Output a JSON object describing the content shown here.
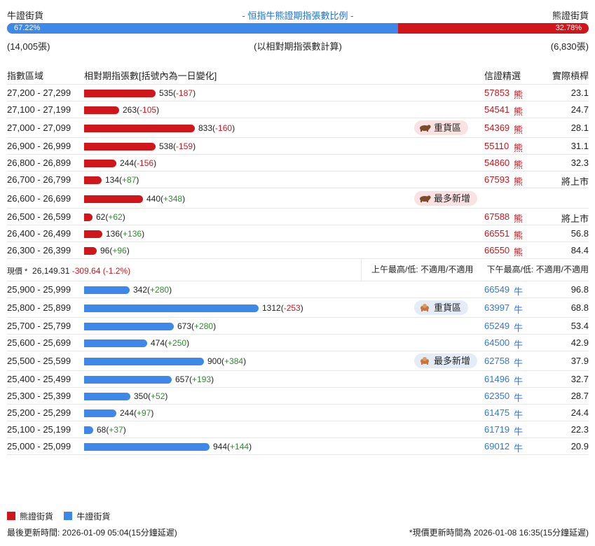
{
  "header": {
    "bull_label": "牛證街貨",
    "title": "- 恒指牛熊證期指張數比例 -",
    "bear_label": "熊證街貨"
  },
  "ratio": {
    "bull_pct": "67.22%",
    "bear_pct": "32.78%",
    "bull_fraction": 0.6722,
    "bull_color": "#3d88e8",
    "bear_color": "#d0151b"
  },
  "counts": {
    "bull": "(14,005張)",
    "note": "(以相對期指張數計算)",
    "bear": "(6,830張)"
  },
  "table_headers": {
    "range": "指數區域",
    "count": "相對期指張數[括號內為一日變化]",
    "issuer": "信證精選",
    "gearing": "實際槓桿"
  },
  "bear_rows": [
    {
      "range": "27,200 - 27,299",
      "value": 535,
      "count": "535",
      "change": "-187",
      "code": "57853",
      "type": "熊",
      "gearing": "23.1",
      "badge": ""
    },
    {
      "range": "27,100 - 27,199",
      "value": 263,
      "count": "263",
      "change": "-105",
      "code": "54541",
      "type": "熊",
      "gearing": "24.7",
      "badge": ""
    },
    {
      "range": "27,000 - 27,099",
      "value": 833,
      "count": "833",
      "change": "-160",
      "code": "54369",
      "type": "熊",
      "gearing": "28.1",
      "badge": "重貨區"
    },
    {
      "range": "26,900 - 26,999",
      "value": 538,
      "count": "538",
      "change": "-159",
      "code": "55110",
      "type": "熊",
      "gearing": "31.1",
      "badge": ""
    },
    {
      "range": "26,800 - 26,899",
      "value": 244,
      "count": "244",
      "change": "-156",
      "code": "54860",
      "type": "熊",
      "gearing": "32.3",
      "badge": ""
    },
    {
      "range": "26,700 - 26,799",
      "value": 134,
      "count": "134",
      "change": "+87",
      "code": "67593",
      "type": "熊",
      "gearing": "將上市",
      "badge": ""
    },
    {
      "range": "26,600 - 26,699",
      "value": 440,
      "count": "440",
      "change": "+348",
      "code": "",
      "type": "",
      "gearing": "",
      "badge": "最多新增"
    },
    {
      "range": "26,500 - 26,599",
      "value": 62,
      "count": "62",
      "change": "+62",
      "code": "67588",
      "type": "熊",
      "gearing": "將上市",
      "badge": ""
    },
    {
      "range": "26,400 - 26,499",
      "value": 136,
      "count": "136",
      "change": "+136",
      "code": "66551",
      "type": "熊",
      "gearing": "56.8",
      "badge": ""
    },
    {
      "range": "26,300 - 26,399",
      "value": 96,
      "count": "96",
      "change": "+96",
      "code": "66550",
      "type": "熊",
      "gearing": "84.4",
      "badge": ""
    }
  ],
  "price_row": {
    "label": "現價 *",
    "price": "26,149.31",
    "change": "-309.64 (-1.2%)",
    "am": "上午最高/低: 不適用/不適用",
    "pm": "下午最高/低: 不適用/不適用"
  },
  "bull_rows": [
    {
      "range": "25,900 - 25,999",
      "value": 342,
      "count": "342",
      "change": "+280",
      "code": "66549",
      "type": "牛",
      "gearing": "96.8",
      "badge": ""
    },
    {
      "range": "25,800 - 25,899",
      "value": 1312,
      "count": "1312",
      "change": "-253",
      "code": "63997",
      "type": "牛",
      "gearing": "68.8",
      "badge": "重貨區"
    },
    {
      "range": "25,700 - 25,799",
      "value": 673,
      "count": "673",
      "change": "+280",
      "code": "65249",
      "type": "牛",
      "gearing": "53.4",
      "badge": ""
    },
    {
      "range": "25,600 - 25,699",
      "value": 474,
      "count": "474",
      "change": "+250",
      "code": "64500",
      "type": "牛",
      "gearing": "42.9",
      "badge": ""
    },
    {
      "range": "25,500 - 25,599",
      "value": 900,
      "count": "900",
      "change": "+384",
      "code": "62758",
      "type": "牛",
      "gearing": "37.9",
      "badge": "最多新增"
    },
    {
      "range": "25,400 - 25,499",
      "value": 657,
      "count": "657",
      "change": "+193",
      "code": "61496",
      "type": "牛",
      "gearing": "32.7",
      "badge": ""
    },
    {
      "range": "25,300 - 25,399",
      "value": 350,
      "count": "350",
      "change": "+52",
      "code": "62350",
      "type": "牛",
      "gearing": "28.7",
      "badge": ""
    },
    {
      "range": "25,200 - 25,299",
      "value": 244,
      "count": "244",
      "change": "+97",
      "code": "61475",
      "type": "牛",
      "gearing": "24.4",
      "badge": ""
    },
    {
      "range": "25,100 - 25,199",
      "value": 68,
      "count": "68",
      "change": "+37",
      "code": "61719",
      "type": "牛",
      "gearing": "22.3",
      "badge": ""
    },
    {
      "range": "25,000 - 25,099",
      "value": 944,
      "count": "944",
      "change": "+144",
      "code": "69012",
      "type": "牛",
      "gearing": "20.9",
      "badge": ""
    }
  ],
  "legend": {
    "bear": "熊證街貨",
    "bull": "牛證街貨"
  },
  "footer": {
    "left": "最後更新時間: 2026-01-09 05:04(15分鐘延遲)",
    "right": "*現價更新時間為 2026-01-08 16:35(15分鐘延遲)"
  },
  "icons": {
    "bear_badge_icon": "bear-icon",
    "bull_badge_icon": "bull-icon"
  }
}
